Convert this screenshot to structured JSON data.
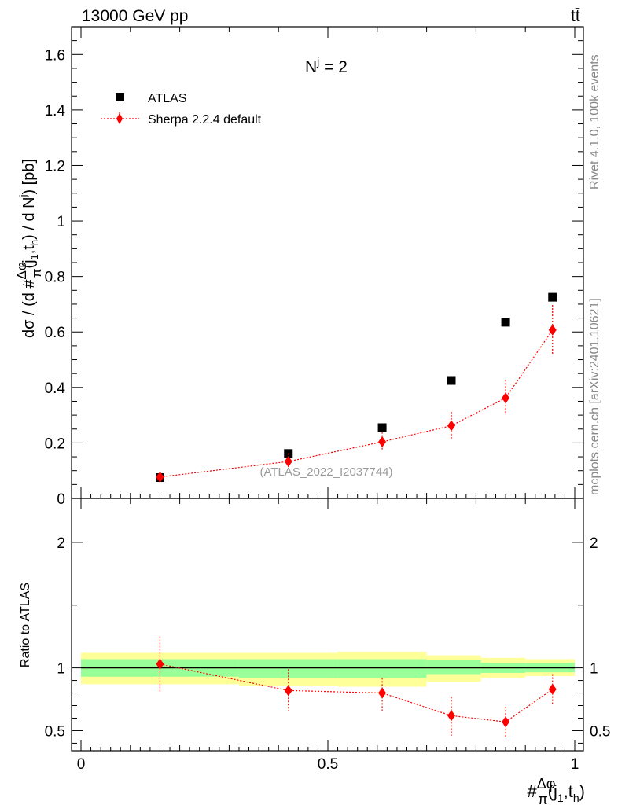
{
  "header": {
    "left": "13000 GeV pp",
    "right": "tt̄"
  },
  "side_labels": {
    "rivet": "Rivet 4.1.0,  100k events",
    "mcplots": "mcplots.cern.ch [arXiv:2401.10621]"
  },
  "chart_data": [
    {
      "type": "scatter",
      "panel": "main",
      "title": "N^j = 2",
      "title_base": "N",
      "title_sup": "j",
      "title_rest": " = 2",
      "ylabel": "dσ / (d #Δφ/π(j1,th) / d N^j) [pb]",
      "ylabel_parts": {
        "a": "dσ / (d #",
        "num": "Δφ",
        "den": "π",
        "b": "(j",
        "s1": "1",
        "c": ",t",
        "s2": "h",
        "d": ") / d N",
        "sup": "j",
        "e": ") [pb]"
      },
      "xlim": [
        0,
        1
      ],
      "ylim": [
        0,
        1.7
      ],
      "yticks": [
        0,
        0.2,
        0.4,
        0.6,
        0.8,
        1,
        1.2,
        1.4,
        1.6
      ],
      "ytick_labels": [
        "0",
        "0.2",
        "0.4",
        "0.6",
        "0.8",
        "1",
        "1.2",
        "1.4",
        "1.6"
      ],
      "watermark": "(ATLAS_2022_I2037744)",
      "legend_position": "top-left",
      "series": [
        {
          "name": "ATLAS",
          "color": "#000000",
          "marker": "square",
          "x": [
            0.16,
            0.42,
            0.61,
            0.75,
            0.86,
            0.955
          ],
          "y": [
            0.075,
            0.162,
            0.255,
            0.425,
            0.635,
            0.725
          ]
        },
        {
          "name": "Sherpa 2.2.4 default",
          "color": "#ff0000",
          "marker": "diamond",
          "line": "dotted",
          "x": [
            0.16,
            0.42,
            0.61,
            0.75,
            0.86,
            0.955
          ],
          "y": [
            0.077,
            0.133,
            0.204,
            0.262,
            0.362,
            0.607
          ],
          "yerr_low": [
            0.006,
            0.02,
            0.03,
            0.05,
            0.06,
            0.09
          ],
          "yerr_high": [
            0.006,
            0.03,
            0.035,
            0.05,
            0.065,
            0.09
          ]
        }
      ]
    },
    {
      "type": "scatter",
      "panel": "ratio",
      "ylabel": "Ratio to ATLAS",
      "xlabel": "#Δφ/π(j1,th)",
      "xlabel_parts": {
        "a": "#",
        "num": "Δφ",
        "den": "π",
        "b": "(j",
        "s1": "1",
        "c": ",t",
        "s2": "h",
        "d": ")"
      },
      "xlim": [
        0,
        1
      ],
      "ylim": [
        0.34,
        2.35
      ],
      "xticks": [
        0,
        0.5,
        1
      ],
      "xtick_labels": [
        "0",
        "0.5",
        "1"
      ],
      "yticks": [
        0.5,
        1,
        2
      ],
      "ytick_labels": [
        "0.5",
        "1",
        "2"
      ],
      "reference_line": 1,
      "bands": {
        "edges": [
          0,
          0.32,
          0.52,
          0.7,
          0.81,
          0.9,
          1.0
        ],
        "green_low": [
          0.93,
          0.92,
          0.92,
          0.95,
          0.96,
          0.965
        ],
        "green_high": [
          1.07,
          1.07,
          1.07,
          1.06,
          1.04,
          1.04
        ],
        "yellow_low": [
          0.87,
          0.86,
          0.85,
          0.89,
          0.92,
          0.935
        ],
        "yellow_high": [
          1.12,
          1.12,
          1.13,
          1.1,
          1.08,
          1.07
        ],
        "green_color": "#99ff99",
        "yellow_color": "#ffff99"
      },
      "series": [
        {
          "name": "Sherpa 2.2.4 default",
          "color": "#ff0000",
          "marker": "diamond",
          "line": "dotted",
          "x": [
            0.16,
            0.42,
            0.61,
            0.75,
            0.86,
            0.955
          ],
          "y": [
            1.03,
            0.82,
            0.8,
            0.62,
            0.57,
            0.83
          ],
          "yerr_low": [
            0.22,
            0.16,
            0.14,
            0.16,
            0.12,
            0.12
          ],
          "yerr_high": [
            0.22,
            0.17,
            0.12,
            0.15,
            0.12,
            0.12
          ]
        }
      ]
    }
  ]
}
